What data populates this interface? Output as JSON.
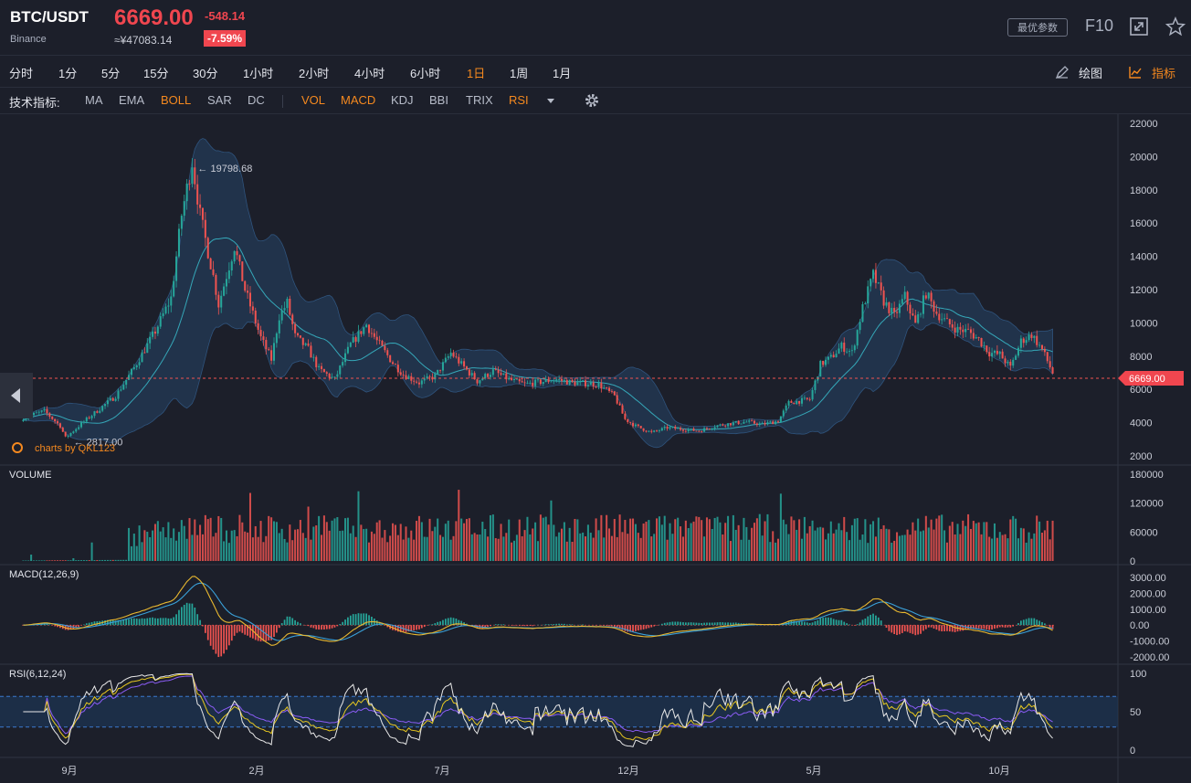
{
  "header": {
    "pair": "BTC/USDT",
    "exchange": "Binance",
    "price": "6669.00",
    "change": "-548.14",
    "cny": "≈¥47083.14",
    "pct": "-7.59%",
    "best_params": "最优参数",
    "f10": "F10",
    "icons": [
      "fullscreen-icon",
      "star-icon"
    ]
  },
  "toolbar": {
    "timeframes": [
      "分时",
      "1分",
      "5分",
      "15分",
      "30分",
      "1小时",
      "2小时",
      "4小时",
      "6小时",
      "1日",
      "1周",
      "1月"
    ],
    "active": "1日",
    "draw_label": "绘图",
    "indicator_label": "指标"
  },
  "indicators": {
    "label": "技术指标:",
    "main": [
      {
        "name": "MA",
        "on": false
      },
      {
        "name": "EMA",
        "on": false
      },
      {
        "name": "BOLL",
        "on": true
      },
      {
        "name": "SAR",
        "on": false
      },
      {
        "name": "DC",
        "on": false
      }
    ],
    "sub": [
      {
        "name": "VOL",
        "on": true
      },
      {
        "name": "MACD",
        "on": true
      },
      {
        "name": "KDJ",
        "on": false
      },
      {
        "name": "BBI",
        "on": false
      },
      {
        "name": "TRIX",
        "on": false
      },
      {
        "name": "RSI",
        "on": true
      }
    ],
    "icons": [
      "dropdown-caret-icon",
      "settings-gear-icon"
    ]
  },
  "colors": {
    "up": "#26a69a",
    "down": "#ef5350",
    "accent": "#f5891f",
    "boll_band": "#2a5a8a",
    "boll_mid": "#35a7b8",
    "macd_dif": "#e8b830",
    "macd_dea": "#3aa0d8",
    "rsi6": "#e8e8e8",
    "rsi12": "#e8c820",
    "rsi24": "#8b5cf6"
  },
  "chart_data": {
    "type": "candlestick",
    "watermark": "charts by QKL123",
    "price_axis": {
      "min": 2000,
      "max": 22000,
      "ticks": [
        22000,
        20000,
        18000,
        16000,
        14000,
        12000,
        10000,
        8000,
        6000,
        4000,
        2000
      ]
    },
    "current_price": "6669.00",
    "high_label": "19798.68",
    "low_label": "2817.00",
    "x_labels": [
      "9月",
      "2月",
      "7月",
      "12月",
      "5月",
      "10月"
    ],
    "anchors": [
      [
        0,
        4300
      ],
      [
        8,
        4700
      ],
      [
        14,
        3800
      ],
      [
        16,
        3100
      ],
      [
        24,
        4200
      ],
      [
        35,
        5600
      ],
      [
        42,
        7300
      ],
      [
        50,
        9500
      ],
      [
        56,
        11500
      ],
      [
        60,
        16500
      ],
      [
        64,
        19700
      ],
      [
        67,
        16500
      ],
      [
        72,
        12800
      ],
      [
        74,
        11100
      ],
      [
        80,
        14600
      ],
      [
        84,
        12000
      ],
      [
        90,
        9100
      ],
      [
        94,
        7800
      ],
      [
        97,
        10400
      ],
      [
        100,
        11200
      ],
      [
        103,
        9200
      ],
      [
        108,
        8400
      ],
      [
        112,
        7200
      ],
      [
        118,
        6600
      ],
      [
        124,
        8700
      ],
      [
        130,
        9900
      ],
      [
        134,
        8900
      ],
      [
        140,
        7600
      ],
      [
        144,
        6900
      ],
      [
        150,
        6400
      ],
      [
        156,
        6800
      ],
      [
        162,
        8200
      ],
      [
        166,
        7500
      ],
      [
        172,
        6500
      ],
      [
        178,
        7100
      ],
      [
        184,
        6600
      ],
      [
        190,
        6300
      ],
      [
        196,
        6450
      ],
      [
        202,
        6600
      ],
      [
        208,
        6400
      ],
      [
        214,
        6350
      ],
      [
        218,
        6300
      ],
      [
        224,
        5600
      ],
      [
        228,
        4200
      ],
      [
        232,
        3800
      ],
      [
        238,
        3400
      ],
      [
        244,
        3700
      ],
      [
        250,
        3600
      ],
      [
        256,
        3500
      ],
      [
        262,
        3800
      ],
      [
        268,
        3950
      ],
      [
        274,
        4050
      ],
      [
        280,
        3900
      ],
      [
        286,
        4100
      ],
      [
        290,
        5200
      ],
      [
        294,
        5300
      ],
      [
        298,
        5400
      ],
      [
        302,
        7500
      ],
      [
        306,
        7900
      ],
      [
        310,
        8600
      ],
      [
        314,
        8200
      ],
      [
        318,
        10900
      ],
      [
        322,
        12900
      ],
      [
        326,
        11300
      ],
      [
        330,
        10400
      ],
      [
        334,
        11600
      ],
      [
        338,
        9900
      ],
      [
        342,
        11800
      ],
      [
        346,
        10600
      ],
      [
        350,
        10000
      ],
      [
        354,
        9600
      ],
      [
        358,
        9500
      ],
      [
        362,
        9000
      ],
      [
        366,
        8200
      ],
      [
        370,
        8100
      ],
      [
        374,
        7300
      ],
      [
        378,
        8900
      ],
      [
        382,
        9300
      ],
      [
        386,
        8400
      ],
      [
        388,
        7700
      ],
      [
        390,
        7000
      ]
    ],
    "candles": 391,
    "volume": {
      "label": "VOLUME",
      "ticks": [
        180000,
        120000,
        60000,
        0
      ]
    },
    "macd": {
      "label": "MACD(12,26,9)",
      "ticks": [
        "3000.00",
        "2000.00",
        "1000.00",
        "0.00",
        "-1000.00",
        "-2000.00"
      ]
    },
    "rsi": {
      "label": "RSI(6,12,24)",
      "ticks": [
        100,
        50,
        0
      ]
    }
  }
}
